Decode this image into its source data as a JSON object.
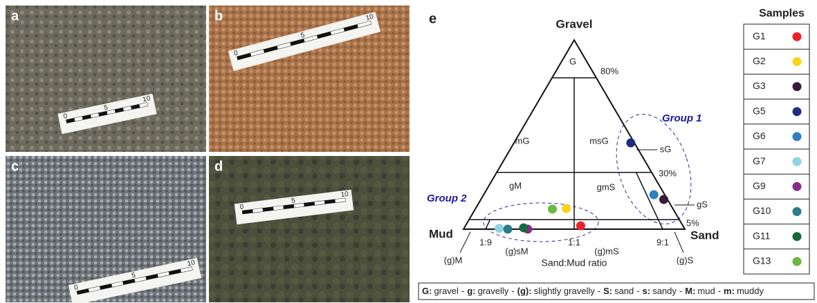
{
  "photos": [
    {
      "label": "a",
      "scale": [
        "0",
        "5",
        "10"
      ]
    },
    {
      "label": "b",
      "scale": [
        "0",
        "5",
        "10"
      ]
    },
    {
      "label": "c",
      "scale": [
        "0",
        "5",
        "10"
      ]
    },
    {
      "label": "d",
      "scale": [
        "0",
        "5",
        "10"
      ]
    }
  ],
  "chart_data": {
    "type": "ternary",
    "panel_label": "e",
    "top_vertex": "Gravel",
    "left_vertex": "Mud",
    "right_vertex": "Sand",
    "x_label": "Sand:Mud ratio",
    "gravel_ticks": [
      {
        "value": 80,
        "label": "80%"
      },
      {
        "value": 30,
        "label": "30%"
      },
      {
        "value": 5,
        "label": "5%"
      }
    ],
    "ratio_ticks": [
      {
        "value": 0.1,
        "label": "1:9"
      },
      {
        "value": 0.5,
        "label": "1:1"
      },
      {
        "value": 0.9,
        "label": "9:1"
      }
    ],
    "regions": [
      "G",
      "mG",
      "msG",
      "sG",
      "gM",
      "gmS",
      "gS",
      "(g)M",
      "(g)sM",
      "(g)mS",
      "(g)S"
    ],
    "groups": [
      "Group 1",
      "Group 2"
    ],
    "legend_title": "Samples",
    "series": [
      {
        "name": "G1",
        "color": "#e8242b",
        "gravel": 1.8,
        "sand_fraction": 0.53
      },
      {
        "name": "G2",
        "color": "#f7d417",
        "gravel": 10.9,
        "sand_fraction": 0.46
      },
      {
        "name": "G3",
        "color": "#3a1a3c",
        "gravel": 15.7,
        "sand_fraction": 0.98
      },
      {
        "name": "G5",
        "color": "#1f2d80",
        "gravel": 45.6,
        "sand_fraction": 0.97
      },
      {
        "name": "G6",
        "color": "#2f7fc1",
        "gravel": 18.2,
        "sand_fraction": 0.94
      },
      {
        "name": "G7",
        "color": "#8fd3e6",
        "gravel": 0.4,
        "sand_fraction": 0.16
      },
      {
        "name": "G9",
        "color": "#8b2a8a",
        "gravel": 0,
        "sand_fraction": 0.29
      },
      {
        "name": "G10",
        "color": "#2a7d8c",
        "gravel": 0,
        "sand_fraction": 0.2
      },
      {
        "name": "G11",
        "color": "#17683c",
        "gravel": 0.7,
        "sand_fraction": 0.27
      },
      {
        "name": "G13",
        "color": "#6bb843",
        "gravel": 10.6,
        "sand_fraction": 0.39
      }
    ]
  },
  "key": {
    "separator": "-",
    "entries": [
      {
        "abbr": "G:",
        "meaning": "gravel"
      },
      {
        "abbr": "g:",
        "meaning": "gravelly"
      },
      {
        "abbr": "(g):",
        "meaning": "slightly gravelly"
      },
      {
        "abbr": "S:",
        "meaning": "sand"
      },
      {
        "abbr": "s:",
        "meaning": "sandy"
      },
      {
        "abbr": "M:",
        "meaning": "mud"
      },
      {
        "abbr": "m:",
        "meaning": "muddy"
      }
    ]
  }
}
